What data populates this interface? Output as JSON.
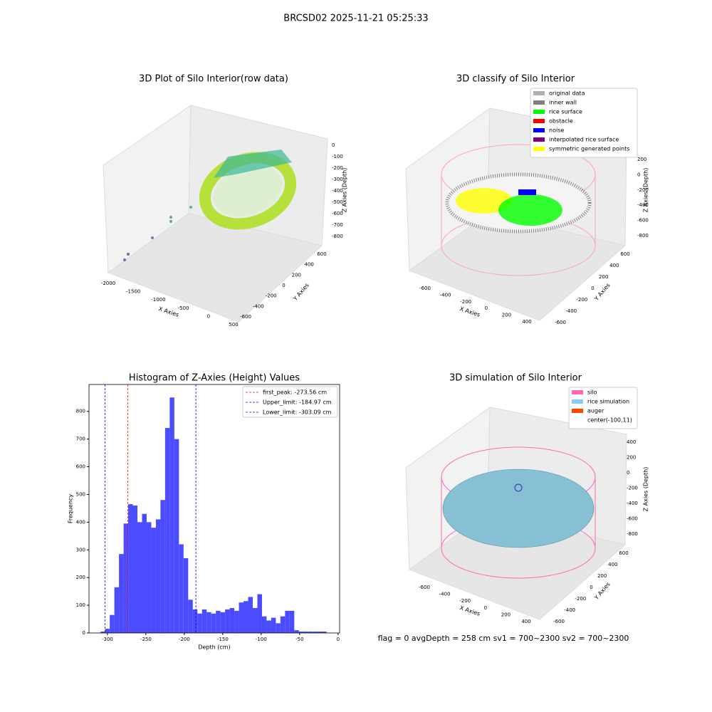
{
  "suptitle": "BRCSD02 2025-11-21 05:25:33",
  "footer": "flag = 0     avgDepth = 258 cm  sv1 = 700~2300  sv2 = 700~2300",
  "chart_data": [
    {
      "type": "scatter3d",
      "title": "3D Plot of Silo Interior(row data)",
      "xlabel": "X Axies",
      "ylabel": "Y Axies",
      "zlabel": "Z Axies (Depth)",
      "xticks": [
        -2000,
        -1500,
        -1000,
        -500,
        0,
        500
      ],
      "yticks": [
        -600,
        -400,
        -200,
        0,
        200,
        400,
        600
      ],
      "zticks": [
        0,
        -100,
        -200,
        -300,
        -400,
        -500,
        -600,
        -700,
        -800
      ]
    },
    {
      "type": "scatter3d",
      "title": "3D classify of Silo Interior",
      "xlabel": "X Axies",
      "ylabel": "Y Axies",
      "zlabel": "Z Axies (Depth)",
      "xticks": [
        -600,
        -400,
        -200,
        0,
        200,
        400
      ],
      "yticks": [
        -600,
        -400,
        -200,
        0,
        200,
        400,
        600
      ],
      "zticks": [
        200,
        0,
        -200,
        -400,
        -600,
        -800
      ],
      "legend": [
        {
          "name": "original data",
          "color": "#b0b0b0"
        },
        {
          "name": "inner wall",
          "color": "#808080"
        },
        {
          "name": "rice surface",
          "color": "#00ff00"
        },
        {
          "name": "obstacle",
          "color": "#ff0000"
        },
        {
          "name": "noise",
          "color": "#0000ff"
        },
        {
          "name": "interpolated rice surface",
          "color": "#800080"
        },
        {
          "name": "symmetric generated points",
          "color": "#ffff00"
        }
      ]
    },
    {
      "type": "histogram",
      "title": "Histogram of Z-Axies (Height) Values",
      "xlabel": "Depth (cm)",
      "ylabel": "Frequency",
      "color": "#4b4bff",
      "bins": [
        -309,
        -303,
        -297,
        -291,
        -285,
        -279,
        -273,
        -267,
        -261,
        -255,
        -249,
        -243,
        -237,
        -231,
        -225,
        -219,
        -213,
        -207,
        -201,
        -195,
        -189,
        -183,
        -177,
        -171,
        -165,
        -159,
        -153,
        -147,
        -141,
        -135,
        -129,
        -123,
        -117,
        -111,
        -105,
        -99,
        -93,
        -87,
        -81,
        -75,
        -69,
        -63,
        -57,
        -51,
        -45,
        -39,
        -33,
        -27,
        -21,
        -15
      ],
      "values": [
        5,
        15,
        65,
        165,
        285,
        395,
        465,
        460,
        400,
        430,
        400,
        380,
        410,
        480,
        740,
        850,
        700,
        320,
        270,
        120,
        85,
        70,
        85,
        75,
        70,
        80,
        75,
        85,
        90,
        80,
        110,
        115,
        130,
        90,
        140,
        60,
        45,
        55,
        35,
        60,
        80,
        80,
        10,
        5,
        5,
        5,
        5,
        5,
        5
      ],
      "xlim": [
        -324,
        2
      ],
      "ylim": [
        0,
        897
      ],
      "xticks": [
        -300,
        -250,
        -200,
        -150,
        -100,
        -50,
        0
      ],
      "yticks": [
        0,
        100,
        200,
        300,
        400,
        500,
        600,
        700,
        800
      ],
      "vlines": [
        {
          "name": "first_peak: -273.56 cm",
          "value": -273.56,
          "color": "#ff0000"
        },
        {
          "name": "Upper_limit: -184.97 cm",
          "value": -184.97,
          "color": "#0000ff"
        },
        {
          "name": "Lower_limit: -303.09 cm",
          "value": -303.09,
          "color": "#0000ff"
        }
      ]
    },
    {
      "type": "surface3d",
      "title": "3D simulation of Silo Interior",
      "xlabel": "X Axies",
      "ylabel": "Y Axies",
      "zlabel": "Z Axies (Depth)",
      "xticks": [
        -600,
        -400,
        -200,
        0,
        200,
        400
      ],
      "yticks": [
        -600,
        -400,
        -200,
        0,
        200,
        400,
        600
      ],
      "zticks": [
        400,
        200,
        0,
        -200,
        -400,
        -600,
        -800
      ],
      "legend": [
        {
          "name": "silo",
          "color": "#ff69b4"
        },
        {
          "name": "rice simulation",
          "color": "#87ceeb"
        },
        {
          "name": "auger",
          "color": "#ff4500"
        },
        {
          "name": "center(-100,11)"
        }
      ]
    }
  ]
}
